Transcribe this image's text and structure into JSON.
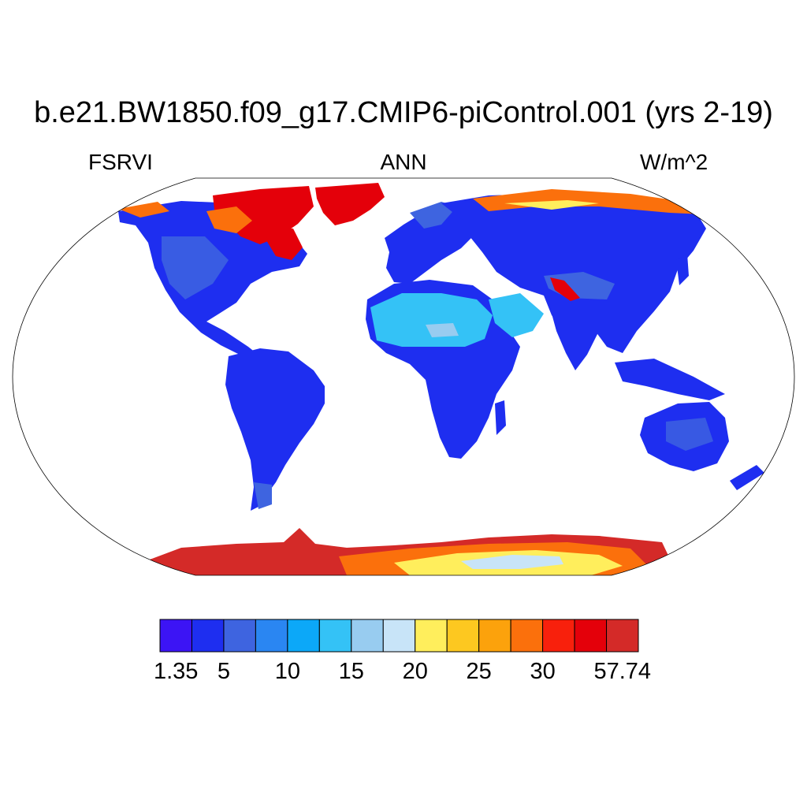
{
  "title": "b.e21.BW1850.f09_g17.CMIP6-piControl.001 (yrs 2-19)",
  "left_label": "FSRVI",
  "center_label": "ANN",
  "right_label": "W/m^2",
  "colorbar": {
    "colors": [
      "#3c14f5",
      "#1e2ef0",
      "#3e64e0",
      "#2a86f2",
      "#0ca8f8",
      "#34c2f6",
      "#98ccf0",
      "#c8e4f8",
      "#ffee5c",
      "#fdc820",
      "#fca20c",
      "#fb700c",
      "#f8200c",
      "#e4000a",
      "#d42a28"
    ],
    "labels": [
      "1.35",
      "5",
      "10",
      "15",
      "20",
      "25",
      "30",
      "57.74"
    ]
  },
  "map_colors": {
    "ocean": "#ffffff",
    "land_low": "#1e2ef0",
    "land_mid": "#3e64e0",
    "desert": "#34c2f6",
    "desert_bright": "#98ccf0",
    "arctic_high": "#e4000a",
    "arctic_mid": "#fb700c",
    "ice_yellow": "#ffee5c",
    "ice_pale": "#c8e4f8",
    "antarctic_edge": "#d42a28"
  }
}
